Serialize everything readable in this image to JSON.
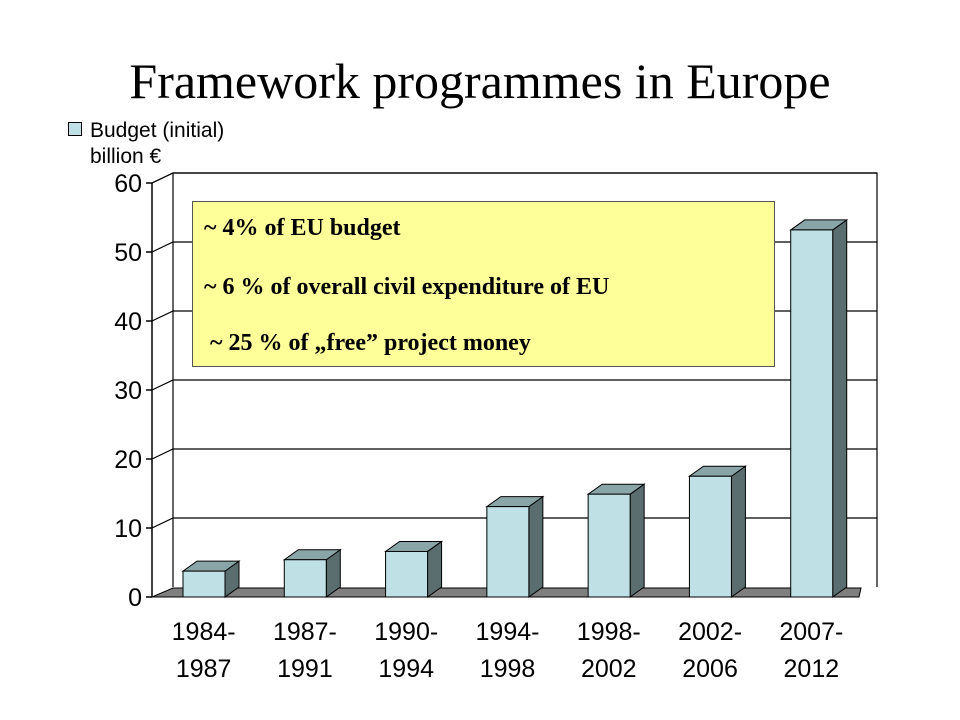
{
  "title": "Framework programmes in Europe",
  "callout": {
    "lines": [
      "~ 4% of EU budget",
      "~ 6 % of overall civil expenditure of EU",
      " ~ 25 % of „free” project money"
    ]
  },
  "colors": {
    "bar_face": "#bfe0e4",
    "bar_side": "#5a6e70",
    "bar_top": "#8aa5a8",
    "floor": "#7f7f7f",
    "callout_bg": "#ffff99"
  },
  "chart_data": {
    "type": "bar",
    "categories": [
      [
        "1984-",
        "1987"
      ],
      [
        "1987-",
        "1991"
      ],
      [
        "1990-",
        "1994"
      ],
      [
        "1994-",
        "1998"
      ],
      [
        "1998-",
        "2002"
      ],
      [
        "2002-",
        "2006"
      ],
      [
        "2007-",
        "2012"
      ]
    ],
    "series": [
      {
        "name": "Budget (initial)",
        "values": [
          3.75,
          5.4,
          6.6,
          13.1,
          14.9,
          17.5,
          53.2
        ]
      }
    ],
    "unit": "billion €",
    "ylim": [
      0,
      60
    ],
    "yticks": [
      0,
      10,
      20,
      30,
      40,
      50,
      60
    ],
    "grid": true,
    "legend_position": "top-left",
    "style": "3d"
  }
}
